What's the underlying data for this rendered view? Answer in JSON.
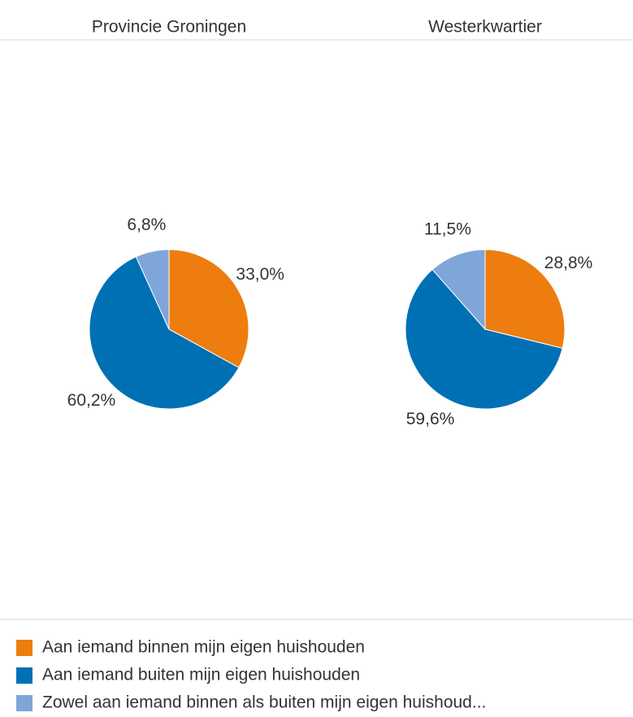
{
  "chart_data": {
    "type": "pie",
    "categories": [
      "Aan iemand binnen mijn eigen huishouden",
      "Aan iemand buiten mijn eigen huishouden",
      "Zowel aan iemand binnen als  buiten mijn eigen huishoud..."
    ],
    "colors": [
      "#ed7d0e",
      "#0070b4",
      "#7ea6d9"
    ],
    "charts": [
      {
        "title": "Provincie Groningen",
        "values": [
          33.0,
          60.2,
          6.8
        ],
        "value_labels": [
          "33,0%",
          "60,2%",
          "6,8%"
        ]
      },
      {
        "title": "Westerkwartier",
        "values": [
          28.8,
          59.6,
          11.5
        ],
        "value_labels": [
          "28,8%",
          "59,6%",
          "11,5%"
        ]
      }
    ]
  }
}
